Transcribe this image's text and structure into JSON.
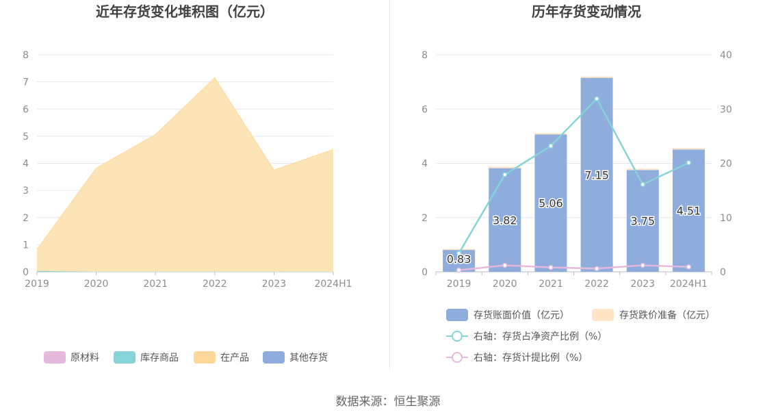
{
  "colors": {
    "raw": "#e6b8dc",
    "stock": "#86d4d8",
    "wip": "#fdd89a",
    "wip_fill": "#fde4b6",
    "other": "#8eaddc",
    "bar": "#8eaddc",
    "impair": "#fde4c4",
    "line_ratio": "#86d4d8",
    "line_prov": "#e6b8dc",
    "grid": "#e3e6ef",
    "axis_text": "#8c8c8c",
    "title": "#404040"
  },
  "chart_data": [
    {
      "type": "area",
      "title": "近年存货变化堆积图（亿元）",
      "categories": [
        "2019",
        "2020",
        "2021",
        "2022",
        "2023",
        "2024H1"
      ],
      "ylim": [
        0,
        8
      ],
      "yticks": [
        0,
        1,
        2,
        3,
        4,
        5,
        6,
        7,
        8
      ],
      "stacked": true,
      "series": [
        {
          "name": "原材料",
          "values": [
            0,
            0,
            0,
            0,
            0,
            0
          ]
        },
        {
          "name": "库存商品",
          "values": [
            0.03,
            0,
            0,
            0,
            0,
            0
          ]
        },
        {
          "name": "在产品",
          "values": [
            0.8,
            3.82,
            5.06,
            7.15,
            3.75,
            4.51
          ]
        },
        {
          "name": "其他存货",
          "values": [
            0,
            0,
            0,
            0,
            0,
            0
          ]
        }
      ],
      "legend_position": "bottom"
    },
    {
      "type": "bar",
      "title": "历年存货变动情况",
      "categories": [
        "2019",
        "2020",
        "2021",
        "2022",
        "2023",
        "2024H1"
      ],
      "ylim": [
        0,
        8
      ],
      "yticks": [
        0,
        2,
        4,
        6,
        8
      ],
      "y2lim": [
        0,
        40
      ],
      "y2ticks": [
        0,
        10,
        20,
        30,
        40
      ],
      "series": [
        {
          "name": "存货账面价值（亿元）",
          "kind": "bar",
          "axis": "left",
          "values": [
            0.83,
            3.82,
            5.06,
            7.15,
            3.75,
            4.51
          ],
          "labels": [
            "0.83",
            "3.82",
            "5.06",
            "7.15",
            "3.75",
            "4.51"
          ]
        },
        {
          "name": "存货跌价准备（亿元）",
          "kind": "bar",
          "axis": "left",
          "values": [
            0.01,
            0.05,
            0.05,
            0.05,
            0.05,
            0.05
          ]
        },
        {
          "name": "右轴：存货占净资产比例（%）",
          "kind": "line",
          "axis": "right",
          "values": [
            3.4,
            17.9,
            23.2,
            31.9,
            16.1,
            20.1
          ]
        },
        {
          "name": "右轴：存货计提比例（%）",
          "kind": "line",
          "axis": "right",
          "values": [
            0.3,
            1.2,
            0.8,
            0.6,
            1.2,
            0.9
          ]
        }
      ],
      "legend_position": "bottom"
    }
  ],
  "footer": {
    "source": "数据来源：恒生聚源"
  }
}
